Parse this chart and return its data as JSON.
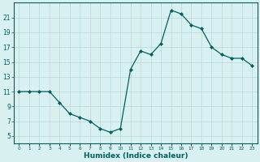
{
  "x_data": [
    0,
    1,
    2,
    3,
    4,
    5,
    6,
    7,
    8,
    9,
    10,
    11,
    12,
    13,
    14,
    15,
    16,
    17,
    18,
    19,
    20,
    21,
    22,
    23
  ],
  "y_data": [
    11,
    11,
    11,
    11,
    9.5,
    8.0,
    7.5,
    7.0,
    6.0,
    5.5,
    6.0,
    14.0,
    16.5,
    16.0,
    17.5,
    22.0,
    21.5,
    20.0,
    19.5,
    17.0,
    16.0,
    15.5,
    15.5,
    14.5
  ],
  "ylim_min": 4,
  "ylim_max": 23,
  "yticks": [
    5,
    7,
    9,
    11,
    13,
    15,
    17,
    19,
    21
  ],
  "xlabel": "Humidex (Indice chaleur)",
  "line_color": "#006060",
  "marker_color": "#006060",
  "bg_color": "#d8f0f0",
  "grid_color": "#b8d8d8",
  "axis_color": "#006060",
  "tick_color": "#006060",
  "label_color": "#006060"
}
